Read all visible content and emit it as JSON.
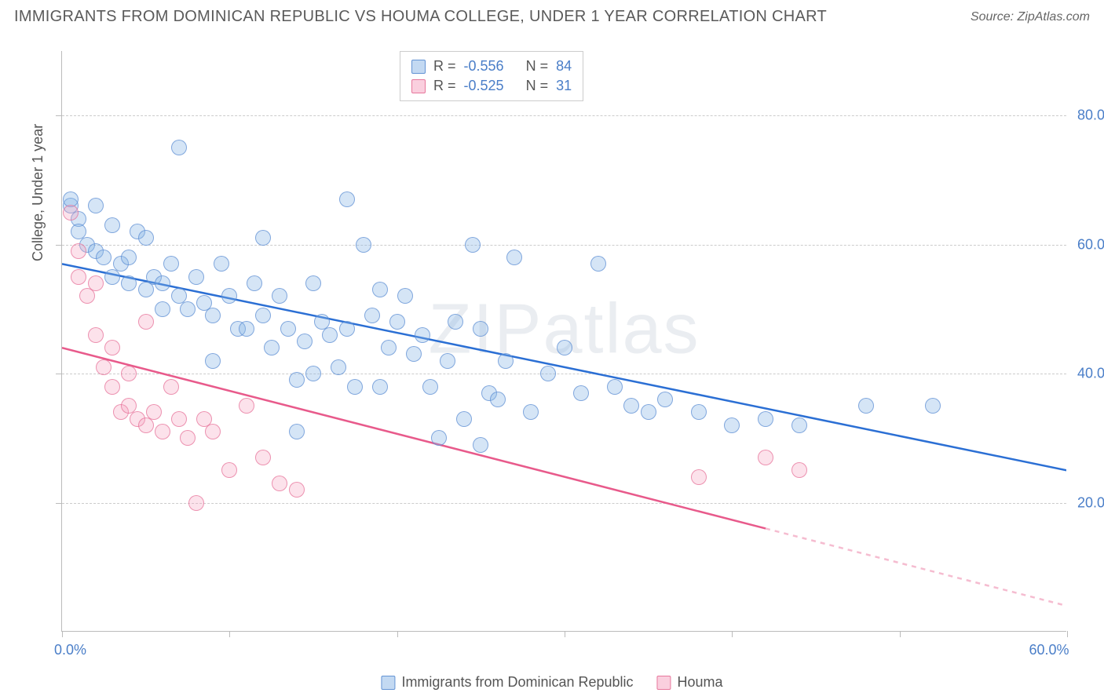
{
  "header": {
    "title": "IMMIGRANTS FROM DOMINICAN REPUBLIC VS HOUMA COLLEGE, UNDER 1 YEAR CORRELATION CHART",
    "source": "Source: ZipAtlas.com"
  },
  "watermark": "ZIPatlas",
  "chart": {
    "type": "scatter",
    "ylabel": "College, Under 1 year",
    "xlim": [
      0,
      60
    ],
    "ylim": [
      0,
      90
    ],
    "x_ticks": [
      0,
      10,
      20,
      30,
      40,
      50,
      60
    ],
    "y_ticks": [
      20,
      40,
      60,
      80
    ],
    "x_tick_labels": [
      "0.0%",
      "",
      "",
      "",
      "",
      "",
      "60.0%"
    ],
    "y_tick_labels": [
      "20.0%",
      "40.0%",
      "60.0%",
      "80.0%"
    ],
    "grid_color": "#cccccc",
    "axis_color": "#bbbbbb",
    "background_color": "#ffffff",
    "label_fontsize": 18,
    "tick_label_color": "#4a7ec8",
    "point_radius": 10,
    "series": [
      {
        "name": "Immigrants from Dominican Republic",
        "color_fill": "rgba(135,180,230,0.35)",
        "color_stroke": "rgba(90,140,210,0.7)",
        "R": "-0.556",
        "N": "84",
        "trend": {
          "x1": 0,
          "y1": 57,
          "x2": 60,
          "y2": 25,
          "color": "#2b6fd4",
          "width": 2.5,
          "dash_after_x": 60
        },
        "points": [
          [
            0.5,
            66
          ],
          [
            0.5,
            67
          ],
          [
            1,
            64
          ],
          [
            1,
            62
          ],
          [
            1.5,
            60
          ],
          [
            2,
            66
          ],
          [
            2,
            59
          ],
          [
            2.5,
            58
          ],
          [
            3,
            63
          ],
          [
            3,
            55
          ],
          [
            3.5,
            57
          ],
          [
            4,
            58
          ],
          [
            4,
            54
          ],
          [
            4.5,
            62
          ],
          [
            5,
            61
          ],
          [
            5,
            53
          ],
          [
            5.5,
            55
          ],
          [
            6,
            54
          ],
          [
            6,
            50
          ],
          [
            6.5,
            57
          ],
          [
            7,
            75
          ],
          [
            7,
            52
          ],
          [
            7.5,
            50
          ],
          [
            8,
            55
          ],
          [
            8.5,
            51
          ],
          [
            9,
            49
          ],
          [
            9,
            42
          ],
          [
            9.5,
            57
          ],
          [
            10,
            52
          ],
          [
            10.5,
            47
          ],
          [
            11,
            47
          ],
          [
            11.5,
            54
          ],
          [
            12,
            61
          ],
          [
            12,
            49
          ],
          [
            12.5,
            44
          ],
          [
            13,
            52
          ],
          [
            13.5,
            47
          ],
          [
            14,
            39
          ],
          [
            14.5,
            45
          ],
          [
            14,
            31
          ],
          [
            15,
            54
          ],
          [
            15,
            40
          ],
          [
            15.5,
            48
          ],
          [
            16,
            46
          ],
          [
            16.5,
            41
          ],
          [
            17,
            67
          ],
          [
            17,
            47
          ],
          [
            17.5,
            38
          ],
          [
            18,
            60
          ],
          [
            18.5,
            49
          ],
          [
            19,
            53
          ],
          [
            19,
            38
          ],
          [
            19.5,
            44
          ],
          [
            20,
            48
          ],
          [
            20.5,
            52
          ],
          [
            21,
            43
          ],
          [
            21.5,
            46
          ],
          [
            22,
            38
          ],
          [
            22.5,
            30
          ],
          [
            23,
            42
          ],
          [
            23.5,
            48
          ],
          [
            24,
            33
          ],
          [
            24.5,
            60
          ],
          [
            25,
            47
          ],
          [
            25.5,
            37
          ],
          [
            25,
            29
          ],
          [
            26,
            36
          ],
          [
            26.5,
            42
          ],
          [
            27,
            58
          ],
          [
            28,
            34
          ],
          [
            29,
            40
          ],
          [
            30,
            44
          ],
          [
            31,
            37
          ],
          [
            32,
            57
          ],
          [
            33,
            38
          ],
          [
            34,
            35
          ],
          [
            35,
            34
          ],
          [
            36,
            36
          ],
          [
            38,
            34
          ],
          [
            40,
            32
          ],
          [
            42,
            33
          ],
          [
            44,
            32
          ],
          [
            48,
            35
          ],
          [
            52,
            35
          ]
        ]
      },
      {
        "name": "Houma",
        "color_fill": "rgba(245,160,190,0.30)",
        "color_stroke": "rgba(230,110,150,0.7)",
        "R": "-0.525",
        "N": "31",
        "trend": {
          "x1": 0,
          "y1": 44,
          "x2": 60,
          "y2": 4,
          "color": "#e85a8b",
          "width": 2.5,
          "dash_after_x": 42
        },
        "points": [
          [
            0.5,
            65
          ],
          [
            1,
            59
          ],
          [
            1,
            55
          ],
          [
            1.5,
            52
          ],
          [
            2,
            54
          ],
          [
            2,
            46
          ],
          [
            2.5,
            41
          ],
          [
            3,
            44
          ],
          [
            3,
            38
          ],
          [
            3.5,
            34
          ],
          [
            4,
            40
          ],
          [
            4,
            35
          ],
          [
            4.5,
            33
          ],
          [
            5,
            48
          ],
          [
            5,
            32
          ],
          [
            5.5,
            34
          ],
          [
            6,
            31
          ],
          [
            6.5,
            38
          ],
          [
            7,
            33
          ],
          [
            7.5,
            30
          ],
          [
            8,
            20
          ],
          [
            8.5,
            33
          ],
          [
            9,
            31
          ],
          [
            10,
            25
          ],
          [
            11,
            35
          ],
          [
            12,
            27
          ],
          [
            13,
            23
          ],
          [
            14,
            22
          ],
          [
            38,
            24
          ],
          [
            42,
            27
          ],
          [
            44,
            25
          ]
        ]
      }
    ]
  },
  "legend_top": {
    "rows": [
      {
        "swatch": "blue",
        "r_label": "R =",
        "r_val": "-0.556",
        "n_label": "N =",
        "n_val": "84"
      },
      {
        "swatch": "pink",
        "r_label": "R =",
        "r_val": "-0.525",
        "n_label": "N =",
        "n_val": "31"
      }
    ]
  },
  "legend_bottom": {
    "items": [
      {
        "swatch": "blue",
        "label": "Immigrants from Dominican Republic"
      },
      {
        "swatch": "pink",
        "label": "Houma"
      }
    ]
  }
}
